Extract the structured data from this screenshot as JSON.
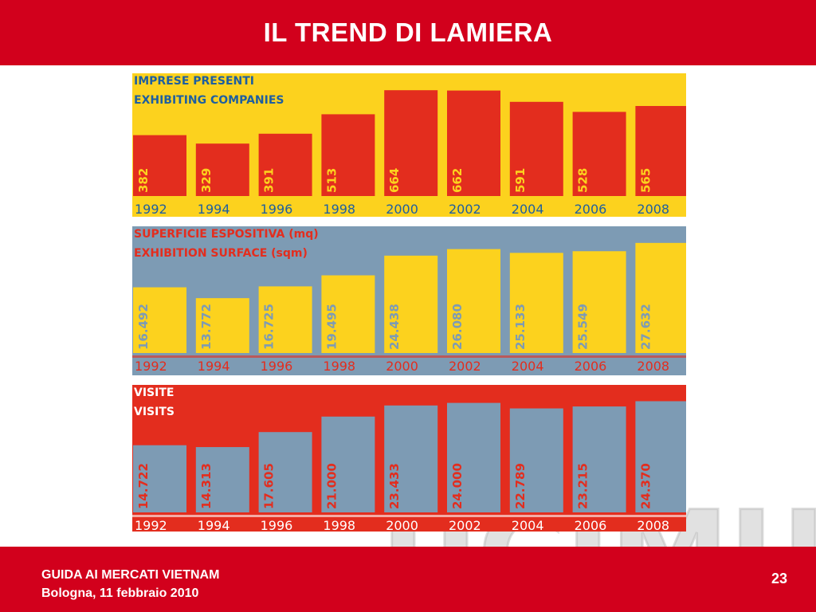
{
  "slide": {
    "title": "IL TREND DI LAMIERA",
    "footer_line1": "GUIDA AI MERCATI VIETNAM",
    "footer_line2": "Bologna, 11 febbraio 2010",
    "page_number": "23",
    "watermark_text": "UCIMU"
  },
  "chart_data": [
    {
      "type": "bar",
      "title": "IMPRESE PRESENTI",
      "subtitle": "EXHIBITING COMPANIES",
      "categories": [
        "1992",
        "1994",
        "1996",
        "1998",
        "2000",
        "2002",
        "2004",
        "2006",
        "2008"
      ],
      "value_labels": [
        "382",
        "329",
        "391",
        "513",
        "664",
        "662",
        "591",
        "528",
        "565"
      ],
      "values": [
        382,
        329,
        391,
        513,
        664,
        662,
        591,
        528,
        565
      ],
      "ylim": [
        0,
        700
      ],
      "colors": {
        "background": "#fcd21e",
        "bar": "#e32d1e",
        "label": "#fcd21e",
        "title": "#1e5fa0",
        "year": "#1e5fa0"
      }
    },
    {
      "type": "bar",
      "title": "SUPERFICIE ESPOSITIVA (mq)",
      "subtitle": "EXHIBITION SURFACE (sqm)",
      "categories": [
        "1992",
        "1994",
        "1996",
        "1998",
        "2000",
        "2002",
        "2004",
        "2006",
        "2008"
      ],
      "value_labels": [
        "16.492",
        "13.772",
        "16.725",
        "19.495",
        "24.438",
        "26.080",
        "25.133",
        "25.549",
        "27.632"
      ],
      "values": [
        16492,
        13772,
        16725,
        19495,
        24438,
        26080,
        25133,
        25549,
        27632
      ],
      "ylim": [
        0,
        29000
      ],
      "colors": {
        "background": "#7d9bb4",
        "bar": "#fcd21e",
        "label": "#7d9bb4",
        "title": "#e32d1e",
        "year": "#e32d1e"
      }
    },
    {
      "type": "bar",
      "title": "VISITE",
      "subtitle": "VISITS",
      "categories": [
        "1992",
        "1994",
        "1996",
        "1998",
        "2000",
        "2002",
        "2004",
        "2006",
        "2008"
      ],
      "value_labels": [
        "14.722",
        "14.313",
        "17.605",
        "21.000",
        "23.433",
        "24.000",
        "22.789",
        "23.215",
        "24.370"
      ],
      "values": [
        14722,
        14313,
        17605,
        21000,
        23433,
        24000,
        22789,
        23215,
        24370
      ],
      "ylim": [
        0,
        25500
      ],
      "colors": {
        "background": "#e32d1e",
        "bar": "#7d9bb4",
        "label": "#e32d1e",
        "title": "#ffffff",
        "year": "#ffffff"
      }
    }
  ]
}
